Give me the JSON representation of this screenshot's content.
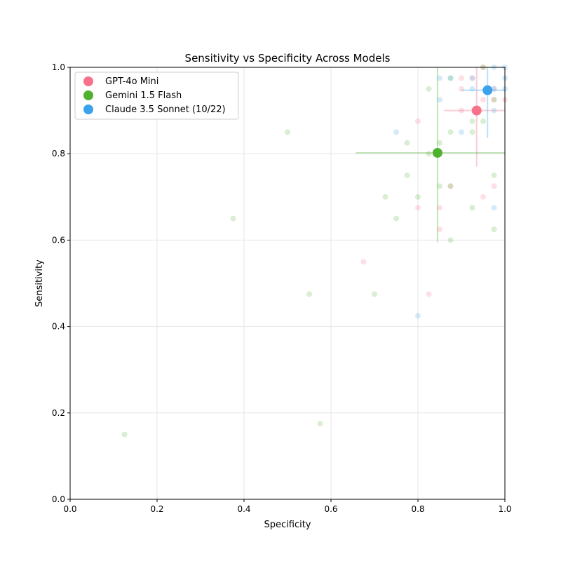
{
  "chart_data": {
    "type": "scatter",
    "title": "Sensitivity vs Specificity Across Models",
    "xlabel": "Specificity",
    "ylabel": "Sensitivity",
    "xlim": [
      0,
      1
    ],
    "ylim": [
      0,
      1
    ],
    "xticks": [
      "0.0",
      "0.2",
      "0.4",
      "0.6",
      "0.8",
      "1.0"
    ],
    "yticks": [
      "0.0",
      "0.2",
      "0.4",
      "0.6",
      "0.8",
      "1.0"
    ],
    "grid": true,
    "legend_placement": "top-left",
    "series": [
      {
        "name": "GPT-4o Mini",
        "color": "#f77189",
        "mean": {
          "x": 0.935,
          "y": 0.9,
          "x_err": [
            0.86,
            1.0
          ],
          "y_err": [
            0.77,
            1.0
          ]
        },
        "points": [
          [
            0.675,
            0.55
          ],
          [
            0.8,
            0.875
          ],
          [
            0.8,
            0.675
          ],
          [
            0.825,
            0.475
          ],
          [
            0.85,
            0.675
          ],
          [
            0.85,
            0.625
          ],
          [
            0.875,
            0.725
          ],
          [
            0.9,
            0.975
          ],
          [
            0.9,
            0.95
          ],
          [
            0.9,
            0.9
          ],
          [
            0.925,
            0.975
          ],
          [
            0.95,
            0.925
          ],
          [
            0.95,
            0.7
          ],
          [
            0.95,
            1.0
          ],
          [
            0.975,
            0.725
          ],
          [
            0.975,
            0.925
          ],
          [
            1.0,
            0.925
          ],
          [
            0.975,
            0.95
          ]
        ]
      },
      {
        "name": "Gemini 1.5 Flash",
        "color": "#50b131",
        "mean": {
          "x": 0.845,
          "y": 0.802,
          "x_err": [
            0.657,
            1.0
          ],
          "y_err": [
            0.595,
            1.0
          ]
        },
        "points": [
          [
            0.125,
            0.15
          ],
          [
            0.375,
            0.65
          ],
          [
            0.5,
            0.85
          ],
          [
            0.55,
            0.475
          ],
          [
            0.575,
            0.175
          ],
          [
            0.7,
            0.475
          ],
          [
            0.725,
            0.7
          ],
          [
            0.75,
            0.65
          ],
          [
            0.775,
            0.825
          ],
          [
            0.775,
            0.75
          ],
          [
            0.8,
            0.7
          ],
          [
            0.825,
            0.8
          ],
          [
            0.825,
            0.95
          ],
          [
            0.85,
            0.825
          ],
          [
            0.85,
            0.725
          ],
          [
            0.875,
            0.85
          ],
          [
            0.875,
            0.6
          ],
          [
            0.875,
            0.725
          ],
          [
            0.875,
            0.975
          ],
          [
            0.925,
            0.875
          ],
          [
            0.925,
            0.85
          ],
          [
            0.925,
            0.675
          ],
          [
            0.95,
            0.875
          ],
          [
            0.975,
            0.75
          ],
          [
            0.975,
            0.625
          ],
          [
            0.95,
            1.0
          ],
          [
            0.975,
            0.925
          ]
        ]
      },
      {
        "name": "Claude 3.5 Sonnet (10/22)",
        "color": "#3ba3ec",
        "mean": {
          "x": 0.96,
          "y": 0.947,
          "x_err": [
            0.9,
            1.0
          ],
          "y_err": [
            0.836,
            1.0
          ]
        },
        "points": [
          [
            0.75,
            0.85
          ],
          [
            0.8,
            0.425
          ],
          [
            0.85,
            0.975
          ],
          [
            0.85,
            0.925
          ],
          [
            0.875,
            0.975
          ],
          [
            0.9,
            0.85
          ],
          [
            0.925,
            0.95
          ],
          [
            0.925,
            0.975
          ],
          [
            0.975,
            0.675
          ],
          [
            0.975,
            1.0
          ],
          [
            0.975,
            0.9
          ],
          [
            0.975,
            0.95
          ],
          [
            1.0,
            0.975
          ],
          [
            1.0,
            0.95
          ],
          [
            1.0,
            1.0
          ]
        ]
      }
    ]
  }
}
